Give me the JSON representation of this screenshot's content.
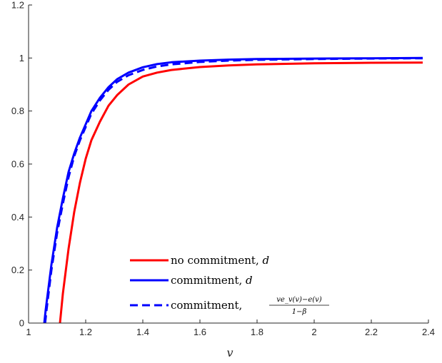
{
  "chart_data": {
    "type": "line",
    "title": "",
    "xlabel": "v",
    "ylabel": "",
    "xlim": [
      1,
      2.4
    ],
    "ylim": [
      0,
      1.2
    ],
    "xticks": [
      1,
      1.2,
      1.4,
      1.6,
      1.8,
      2,
      2.2,
      2.4
    ],
    "yticks": [
      0,
      0.2,
      0.4,
      0.6,
      0.8,
      1,
      1.2
    ],
    "xtick_labels": [
      "1",
      "1.2",
      "1.4",
      "1.6",
      "1.8",
      "2",
      "2.2",
      "2.4"
    ],
    "ytick_labels": [
      "0",
      "0.2",
      "0.4",
      "0.6",
      "0.8",
      "1",
      "1.2"
    ],
    "grid": false,
    "legend_position": "bottom-center",
    "series": [
      {
        "name": "no commitment, d",
        "color": "#ff0000",
        "style": "solid",
        "x": [
          1.11,
          1.12,
          1.14,
          1.16,
          1.18,
          1.2,
          1.22,
          1.25,
          1.28,
          1.31,
          1.35,
          1.4,
          1.45,
          1.5,
          1.6,
          1.7,
          1.8,
          2.0,
          2.2,
          2.38
        ],
        "y": [
          0.0,
          0.11,
          0.28,
          0.42,
          0.53,
          0.62,
          0.69,
          0.76,
          0.82,
          0.86,
          0.9,
          0.93,
          0.945,
          0.955,
          0.966,
          0.972,
          0.976,
          0.98,
          0.982,
          0.983
        ]
      },
      {
        "name": "commitment, d",
        "color": "#0000ff",
        "style": "solid",
        "x": [
          1.055,
          1.06,
          1.08,
          1.1,
          1.12,
          1.14,
          1.16,
          1.18,
          1.2,
          1.22,
          1.25,
          1.28,
          1.31,
          1.35,
          1.4,
          1.45,
          1.5,
          1.6,
          1.7,
          1.8,
          2.0,
          2.2,
          2.38
        ],
        "y": [
          0.0,
          0.05,
          0.22,
          0.36,
          0.47,
          0.57,
          0.64,
          0.7,
          0.75,
          0.8,
          0.85,
          0.89,
          0.92,
          0.945,
          0.965,
          0.977,
          0.984,
          0.99,
          0.994,
          0.996,
          0.998,
          0.999,
          1.0
        ]
      },
      {
        "name": "commitment, (ve_v(v)−e(v))/(1−β)",
        "color": "#0000ff",
        "style": "dashed",
        "x": [
          1.058,
          1.063,
          1.08,
          1.1,
          1.12,
          1.14,
          1.16,
          1.18,
          1.2,
          1.22,
          1.25,
          1.28,
          1.31,
          1.35,
          1.4,
          1.45,
          1.5,
          1.6,
          1.7,
          1.8,
          2.0,
          2.2,
          2.38
        ],
        "y": [
          0.0,
          0.05,
          0.2,
          0.34,
          0.45,
          0.55,
          0.63,
          0.69,
          0.74,
          0.79,
          0.84,
          0.88,
          0.91,
          0.935,
          0.955,
          0.968,
          0.976,
          0.985,
          0.99,
          0.993,
          0.996,
          0.998,
          0.999
        ]
      }
    ],
    "legend_labels": {
      "s0_main": "no commitment, ",
      "s0_var": "d",
      "s1_main": "commitment, ",
      "s1_var": "d",
      "s2_main": "commitment, ",
      "s2_num": "ve_v(v)−e(v)",
      "s2_den": "1−β"
    }
  }
}
